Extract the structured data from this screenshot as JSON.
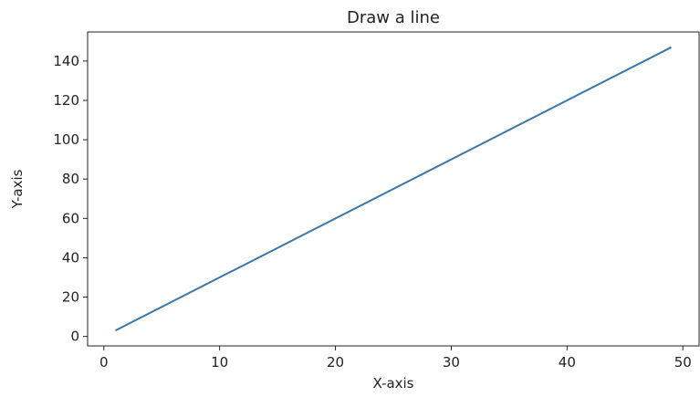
{
  "chart_data": {
    "type": "line",
    "title": "Draw a line",
    "xlabel": "X-axis",
    "ylabel": "Y-axis",
    "xlim": [
      -1.4,
      51.4
    ],
    "ylim": [
      -4.8,
      154.8
    ],
    "xticks": [
      0,
      10,
      20,
      30,
      40,
      50
    ],
    "yticks": [
      0,
      20,
      40,
      60,
      80,
      100,
      120,
      140
    ],
    "grid": false,
    "series": [
      {
        "color": "#3a78ac",
        "x": [
          1,
          49
        ],
        "y": [
          3,
          147
        ]
      }
    ]
  }
}
